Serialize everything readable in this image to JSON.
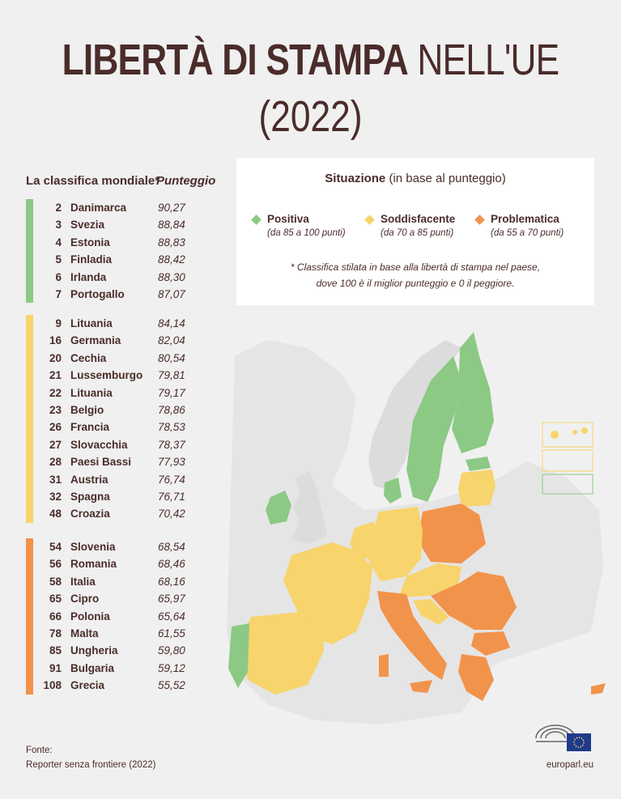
{
  "title": {
    "bold": "LIBERTÀ DI STAMPA",
    "light": " NELL'UE",
    "year": "(2022)"
  },
  "list": {
    "header_label": "La classifica mondiale*",
    "header_score": "Punteggio",
    "groups": [
      {
        "status": "positive",
        "rows": [
          {
            "rank": "2",
            "country": "Danimarca",
            "score": "90,27"
          },
          {
            "rank": "3",
            "country": "Svezia",
            "score": "88,84"
          },
          {
            "rank": "4",
            "country": "Estonia",
            "score": "88,83"
          },
          {
            "rank": "5",
            "country": "Finladia",
            "score": "88,42"
          },
          {
            "rank": "6",
            "country": "Irlanda",
            "score": "88,30"
          },
          {
            "rank": "7",
            "country": "Portogallo",
            "score": "87,07"
          }
        ]
      },
      {
        "status": "satisfactory",
        "rows": [
          {
            "rank": "9",
            "country": "Lituania",
            "score": "84,14"
          },
          {
            "rank": "16",
            "country": "Germania",
            "score": "82,04"
          },
          {
            "rank": "20",
            "country": "Cechia",
            "score": "80,54"
          },
          {
            "rank": "21",
            "country": "Lussemburgo",
            "score": "79,81"
          },
          {
            "rank": "22",
            "country": "Lituania",
            "score": "79,17"
          },
          {
            "rank": "23",
            "country": "Belgio",
            "score": "78,86"
          },
          {
            "rank": "26",
            "country": "Francia",
            "score": "78,53"
          },
          {
            "rank": "27",
            "country": "Slovacchia",
            "score": "78,37"
          },
          {
            "rank": "28",
            "country": "Paesi Bassi",
            "score": "77,93"
          },
          {
            "rank": "31",
            "country": "Austria",
            "score": "76,74"
          },
          {
            "rank": "32",
            "country": "Spagna",
            "score": "76,71"
          },
          {
            "rank": "48",
            "country": "Croazia",
            "score": "70,42"
          }
        ]
      },
      {
        "status": "problematic",
        "rows": [
          {
            "rank": "54",
            "country": "Slovenia",
            "score": "68,54"
          },
          {
            "rank": "56",
            "country": "Romania",
            "score": "68,46"
          },
          {
            "rank": "58",
            "country": "Italia",
            "score": "68,16"
          },
          {
            "rank": "65",
            "country": "Cipro",
            "score": "65,97"
          },
          {
            "rank": "66",
            "country": "Polonia",
            "score": "65,64"
          },
          {
            "rank": "78",
            "country": "Malta",
            "score": "61,55"
          },
          {
            "rank": "85",
            "country": "Ungheria",
            "score": "59,80"
          },
          {
            "rank": "91",
            "country": "Bulgaria",
            "score": "59,12"
          },
          {
            "rank": "108",
            "country": "Grecia",
            "score": "55,52"
          }
        ]
      }
    ]
  },
  "legend": {
    "title_bold": "Situazione",
    "title_rest": " (in base al punteggio)",
    "items": [
      {
        "label": "Positiva",
        "sub": "(da 85 a 100 punti)",
        "color": "#8cc985"
      },
      {
        "label": "Soddisfacente",
        "sub": "(da 70 a 85 punti)",
        "color": "#f7d46c"
      },
      {
        "label": "Problematica",
        "sub": "(da 55 a 70 punti)",
        "color": "#f2934c"
      }
    ],
    "note_line1": "* Classifica stilata in base alla libertà di stampa nel paese,",
    "note_line2": "dove 100 è il miglior punteggio e 0 il peggiore."
  },
  "colors": {
    "positive": "#8cc985",
    "satisfactory": "#f7d46c",
    "problematic": "#f2934c",
    "text": "#4a2c2a",
    "background": "#f0f0f0",
    "non_eu": "#dcdcdc"
  },
  "footer": {
    "source_label": "Fonte:",
    "source_text": "Reporter senza frontiere (2022)",
    "site": "europarl.eu"
  }
}
